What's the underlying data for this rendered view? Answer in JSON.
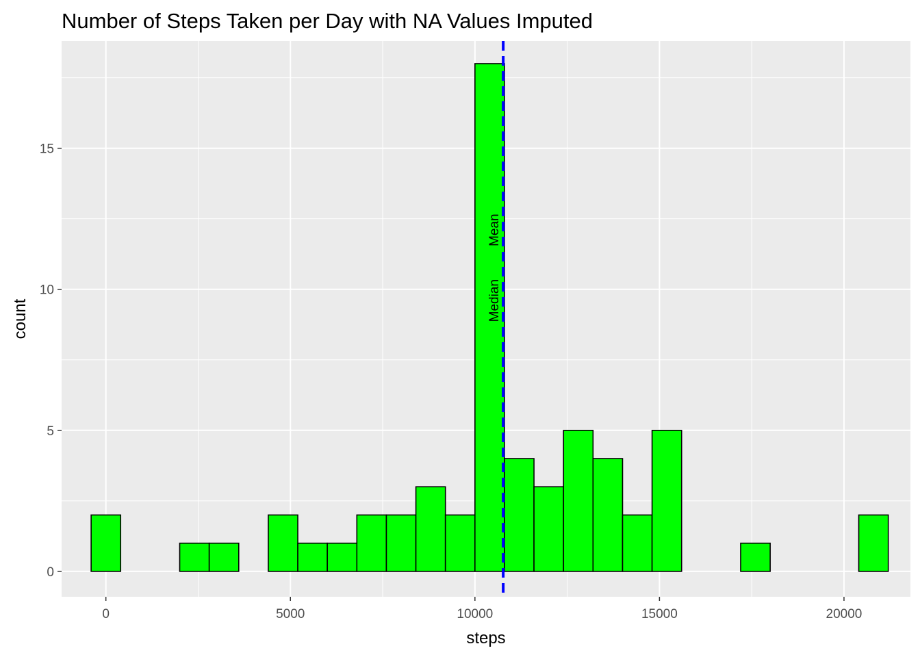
{
  "chart_data": {
    "type": "bar",
    "title": "Number of Steps Taken per Day with NA Values Imputed",
    "xlabel": "steps",
    "ylabel": "count",
    "xlim": [
      -1200,
      21800
    ],
    "ylim": [
      -0.9,
      18.8
    ],
    "x_ticks": [
      0,
      5000,
      10000,
      15000,
      20000
    ],
    "y_ticks": [
      0,
      5,
      10,
      15
    ],
    "bins": [
      {
        "x0": -400,
        "x1": 400,
        "count": 2
      },
      {
        "x0": 400,
        "x1": 1200,
        "count": 0
      },
      {
        "x0": 1200,
        "x1": 2000,
        "count": 0
      },
      {
        "x0": 2000,
        "x1": 2800,
        "count": 1
      },
      {
        "x0": 2800,
        "x1": 3600,
        "count": 1
      },
      {
        "x0": 3600,
        "x1": 4400,
        "count": 0
      },
      {
        "x0": 4400,
        "x1": 5200,
        "count": 2
      },
      {
        "x0": 5200,
        "x1": 6000,
        "count": 1
      },
      {
        "x0": 6000,
        "x1": 6800,
        "count": 1
      },
      {
        "x0": 6800,
        "x1": 7600,
        "count": 2
      },
      {
        "x0": 7600,
        "x1": 8400,
        "count": 2
      },
      {
        "x0": 8400,
        "x1": 9200,
        "count": 3
      },
      {
        "x0": 9200,
        "x1": 10000,
        "count": 2
      },
      {
        "x0": 10000,
        "x1": 10800,
        "count": 18
      },
      {
        "x0": 10800,
        "x1": 11600,
        "count": 4
      },
      {
        "x0": 11600,
        "x1": 12400,
        "count": 3
      },
      {
        "x0": 12400,
        "x1": 13200,
        "count": 5
      },
      {
        "x0": 13200,
        "x1": 14000,
        "count": 4
      },
      {
        "x0": 14000,
        "x1": 14800,
        "count": 2
      },
      {
        "x0": 14800,
        "x1": 15600,
        "count": 5
      },
      {
        "x0": 15600,
        "x1": 16400,
        "count": 0
      },
      {
        "x0": 16400,
        "x1": 17200,
        "count": 0
      },
      {
        "x0": 17200,
        "x1": 18000,
        "count": 1
      },
      {
        "x0": 18000,
        "x1": 18800,
        "count": 0
      },
      {
        "x0": 18800,
        "x1": 19600,
        "count": 0
      },
      {
        "x0": 19600,
        "x1": 20400,
        "count": 0
      },
      {
        "x0": 20400,
        "x1": 21200,
        "count": 2
      }
    ],
    "reference_lines": [
      {
        "label": "Median",
        "x": 10766,
        "label_y": 9.6,
        "line": false
      },
      {
        "label": "Mean",
        "x": 10766,
        "label_y": 12.1,
        "line": true
      }
    ],
    "colors": {
      "panel_background": "#ebebeb",
      "grid_major": "#ffffff",
      "bar_fill": "#00ff00",
      "bar_stroke": "#000000",
      "reference_line": "#0000ff"
    },
    "grid": true
  }
}
